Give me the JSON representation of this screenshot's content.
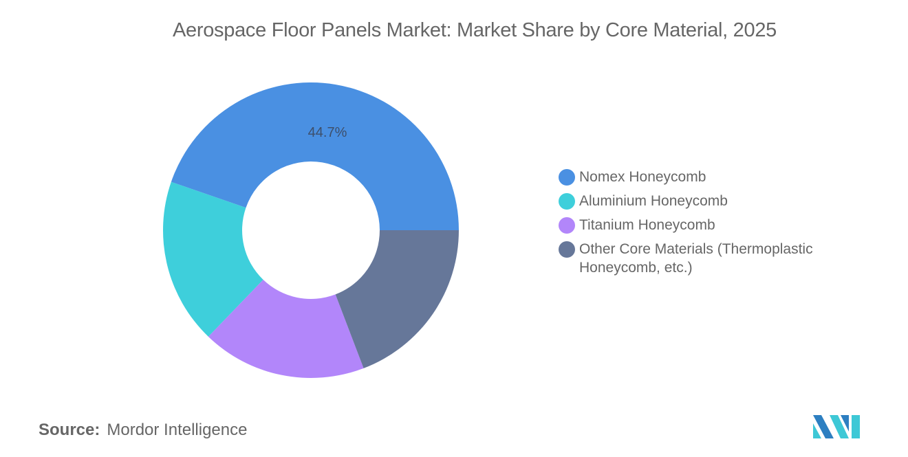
{
  "title": "Aerospace Floor Panels Market: Market Share by Core Material, 2025",
  "source": {
    "key": "Source:",
    "value": "Mordor Intelligence"
  },
  "logo": {
    "icon": "mordor-intelligence-logo-icon",
    "colors": [
      "#2d7fc1",
      "#3ec8d6"
    ]
  },
  "chart_data": {
    "type": "pie",
    "variant": "donut",
    "title": "Aerospace Floor Panels Market: Market Share by Core Material, 2025",
    "categories": [
      "Nomex Honeycomb",
      "Aluminium Honeycomb",
      "Titanium Honeycomb",
      "Other Core Materials (Thermoplastic Honeycomb, etc.)"
    ],
    "values": [
      44.7,
      18.1,
      18.0,
      19.2
    ],
    "colors": [
      "#4a90e2",
      "#3ecfdb",
      "#b286fa",
      "#667799"
    ],
    "data_labels": [
      "44.7%",
      "",
      "",
      ""
    ],
    "unit": "%",
    "legend_position": "right",
    "start_angle_deg": 0,
    "direction": "counterclockwise"
  },
  "legend": {
    "items": [
      {
        "label": "Nomex Honeycomb",
        "color": "#4a90e2"
      },
      {
        "label": "Aluminium Honeycomb",
        "color": "#3ecfdb"
      },
      {
        "label": "Titanium Honeycomb",
        "color": "#b286fa"
      },
      {
        "label": "Other Core Materials (Thermoplastic Honeycomb, etc.)",
        "color": "#667799"
      }
    ]
  }
}
